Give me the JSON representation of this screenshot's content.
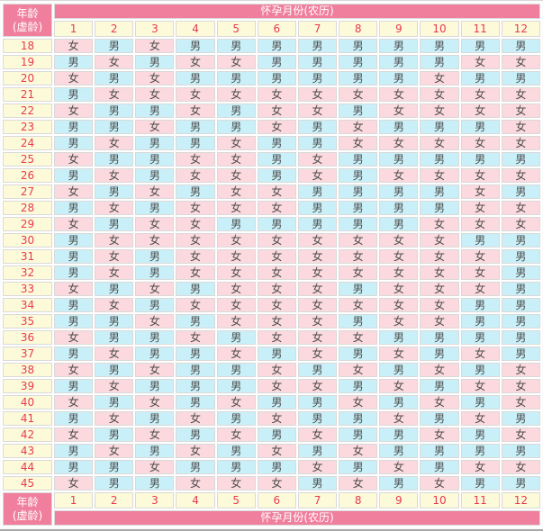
{
  "colors": {
    "header_pink": "#f07f9d",
    "cell_pink": "#fbd9de",
    "cell_cyan": "#c9f0f8",
    "cell_yellow": "#fcfad8",
    "number_red": "#e83a54",
    "text_gray": "#4d4d4d",
    "grid_line": "#d9d9d9",
    "outer_border": "#a9a9a9"
  },
  "table": {
    "age_label": [
      "年龄",
      "(虚龄)"
    ],
    "month_header": "怀孕月份(农历)",
    "months": [
      "1",
      "2",
      "3",
      "4",
      "5",
      "6",
      "7",
      "8",
      "9",
      "10",
      "11",
      "12"
    ],
    "legend": {
      "boy_label": "男",
      "girl_label": "女"
    },
    "rows": [
      {
        "age": "18",
        "cells": [
          "女",
          "男",
          "女",
          "男",
          "男",
          "男",
          "男",
          "男",
          "男",
          "男",
          "男",
          "男"
        ]
      },
      {
        "age": "19",
        "cells": [
          "男",
          "女",
          "男",
          "女",
          "女",
          "男",
          "男",
          "男",
          "男",
          "男",
          "女",
          "女"
        ]
      },
      {
        "age": "20",
        "cells": [
          "女",
          "男",
          "女",
          "男",
          "男",
          "男",
          "男",
          "男",
          "男",
          "女",
          "男",
          "男"
        ]
      },
      {
        "age": "21",
        "cells": [
          "男",
          "女",
          "女",
          "女",
          "女",
          "女",
          "女",
          "女",
          "女",
          "女",
          "女",
          "女"
        ]
      },
      {
        "age": "22",
        "cells": [
          "女",
          "男",
          "男",
          "女",
          "男",
          "女",
          "女",
          "男",
          "女",
          "女",
          "女",
          "女"
        ]
      },
      {
        "age": "23",
        "cells": [
          "男",
          "男",
          "女",
          "男",
          "男",
          "女",
          "男",
          "女",
          "男",
          "男",
          "男",
          "女"
        ]
      },
      {
        "age": "24",
        "cells": [
          "男",
          "女",
          "男",
          "男",
          "女",
          "男",
          "男",
          "女",
          "女",
          "女",
          "女",
          "女"
        ]
      },
      {
        "age": "25",
        "cells": [
          "女",
          "男",
          "男",
          "女",
          "女",
          "男",
          "女",
          "男",
          "男",
          "男",
          "男",
          "男"
        ]
      },
      {
        "age": "26",
        "cells": [
          "男",
          "女",
          "男",
          "女",
          "女",
          "男",
          "女",
          "男",
          "女",
          "女",
          "女",
          "女"
        ]
      },
      {
        "age": "27",
        "cells": [
          "女",
          "男",
          "女",
          "男",
          "女",
          "女",
          "男",
          "男",
          "男",
          "男",
          "女",
          "男"
        ]
      },
      {
        "age": "28",
        "cells": [
          "男",
          "女",
          "男",
          "女",
          "女",
          "女",
          "男",
          "男",
          "男",
          "男",
          "女",
          "女"
        ]
      },
      {
        "age": "29",
        "cells": [
          "女",
          "男",
          "女",
          "女",
          "男",
          "男",
          "男",
          "男",
          "男",
          "女",
          "女",
          "女"
        ]
      },
      {
        "age": "30",
        "cells": [
          "男",
          "女",
          "女",
          "女",
          "女",
          "女",
          "女",
          "女",
          "女",
          "女",
          "男",
          "男"
        ]
      },
      {
        "age": "31",
        "cells": [
          "男",
          "女",
          "男",
          "女",
          "女",
          "女",
          "女",
          "女",
          "女",
          "女",
          "女",
          "男"
        ]
      },
      {
        "age": "32",
        "cells": [
          "男",
          "女",
          "男",
          "女",
          "女",
          "女",
          "女",
          "女",
          "女",
          "女",
          "女",
          "男"
        ]
      },
      {
        "age": "33",
        "cells": [
          "女",
          "男",
          "女",
          "男",
          "女",
          "女",
          "女",
          "男",
          "女",
          "女",
          "女",
          "男"
        ]
      },
      {
        "age": "34",
        "cells": [
          "男",
          "女",
          "男",
          "女",
          "女",
          "女",
          "女",
          "女",
          "女",
          "女",
          "男",
          "男"
        ]
      },
      {
        "age": "35",
        "cells": [
          "男",
          "男",
          "女",
          "男",
          "女",
          "女",
          "女",
          "男",
          "女",
          "女",
          "男",
          "男"
        ]
      },
      {
        "age": "36",
        "cells": [
          "女",
          "男",
          "男",
          "女",
          "男",
          "女",
          "女",
          "女",
          "男",
          "男",
          "男",
          "男"
        ]
      },
      {
        "age": "37",
        "cells": [
          "男",
          "女",
          "男",
          "男",
          "女",
          "男",
          "女",
          "男",
          "女",
          "男",
          "女",
          "男"
        ]
      },
      {
        "age": "38",
        "cells": [
          "女",
          "男",
          "女",
          "男",
          "男",
          "女",
          "男",
          "女",
          "男",
          "女",
          "男",
          "女"
        ]
      },
      {
        "age": "39",
        "cells": [
          "男",
          "女",
          "男",
          "男",
          "男",
          "女",
          "女",
          "男",
          "女",
          "男",
          "女",
          "女"
        ]
      },
      {
        "age": "40",
        "cells": [
          "女",
          "男",
          "女",
          "男",
          "女",
          "男",
          "男",
          "女",
          "男",
          "女",
          "男",
          "女"
        ]
      },
      {
        "age": "41",
        "cells": [
          "男",
          "女",
          "男",
          "女",
          "男",
          "女",
          "男",
          "男",
          "女",
          "男",
          "女",
          "男"
        ]
      },
      {
        "age": "42",
        "cells": [
          "女",
          "男",
          "女",
          "男",
          "女",
          "男",
          "女",
          "男",
          "男",
          "女",
          "男",
          "女"
        ]
      },
      {
        "age": "43",
        "cells": [
          "男",
          "女",
          "男",
          "女",
          "男",
          "女",
          "男",
          "女",
          "男",
          "男",
          "男",
          "男"
        ]
      },
      {
        "age": "44",
        "cells": [
          "男",
          "男",
          "女",
          "男",
          "男",
          "男",
          "女",
          "男",
          "女",
          "男",
          "女",
          "女"
        ]
      },
      {
        "age": "45",
        "cells": [
          "女",
          "男",
          "男",
          "女",
          "女",
          "女",
          "男",
          "女",
          "男",
          "女",
          "男",
          "男"
        ]
      }
    ]
  },
  "chart_data": {
    "type": "table",
    "title": "怀孕月份(农历)",
    "row_header": "年龄(虚龄)",
    "columns": [
      "1",
      "2",
      "3",
      "4",
      "5",
      "6",
      "7",
      "8",
      "9",
      "10",
      "11",
      "12"
    ],
    "row_labels": [
      "18",
      "19",
      "20",
      "21",
      "22",
      "23",
      "24",
      "25",
      "26",
      "27",
      "28",
      "29",
      "30",
      "31",
      "32",
      "33",
      "34",
      "35",
      "36",
      "37",
      "38",
      "39",
      "40",
      "41",
      "42",
      "43",
      "44",
      "45"
    ],
    "legend": {
      "男": "boy (cyan cell)",
      "女": "girl (pink cell)"
    }
  }
}
